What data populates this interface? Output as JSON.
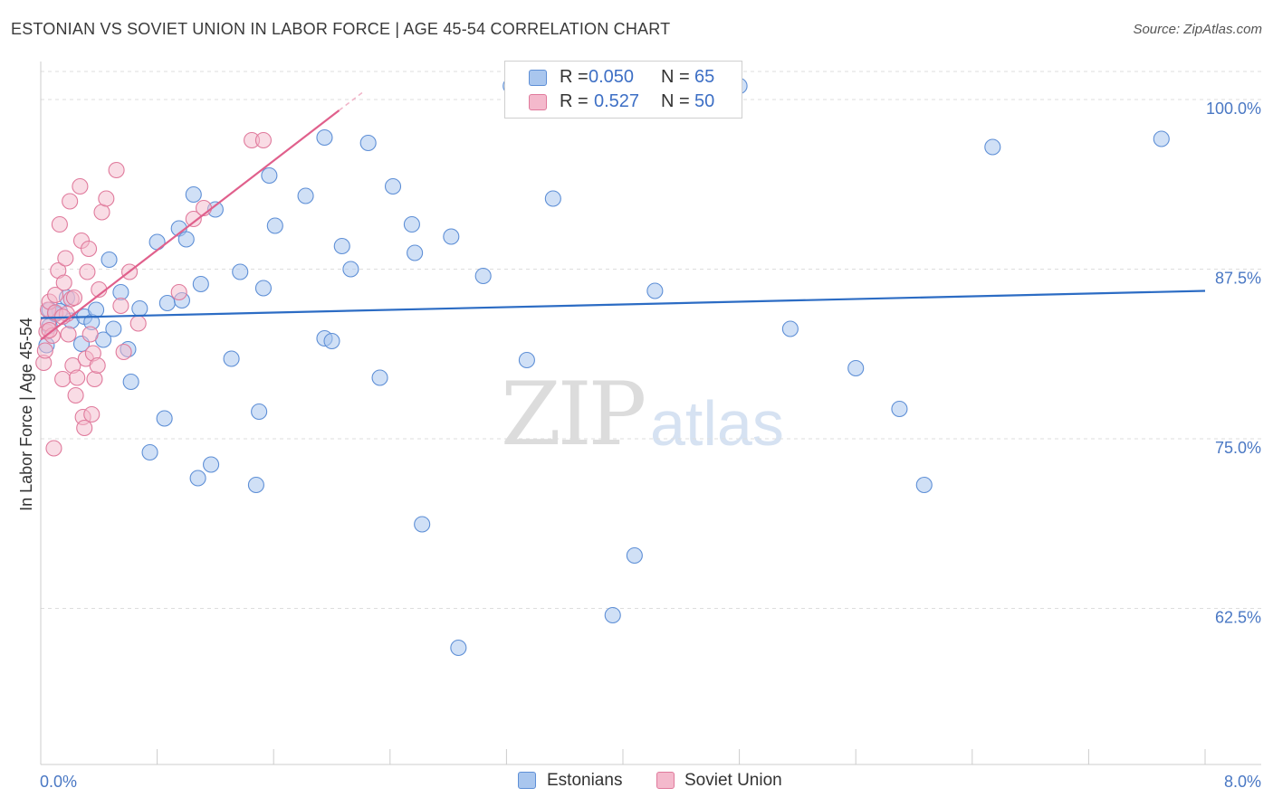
{
  "header": {
    "title": "ESTONIAN VS SOVIET UNION IN LABOR FORCE | AGE 45-54 CORRELATION CHART",
    "source": "Source: ZipAtlas.com"
  },
  "watermark": {
    "part1": "ZIP",
    "part2": "atlas"
  },
  "legend": {
    "estonians": {
      "r_label": "R =",
      "r_value": "0.050",
      "n_label": "N =",
      "n_value": "65"
    },
    "soviet": {
      "r_label": "R =",
      "r_value": "0.527",
      "n_label": "N =",
      "n_value": "50"
    }
  },
  "bottom_legend": {
    "estonians": "Estonians",
    "soviet": "Soviet Union"
  },
  "colors": {
    "estonians_fill": "#a9c6ee",
    "estonians_stroke": "#5e8fd6",
    "estonians_line": "#2c6cc4",
    "soviet_fill": "#f4b9cc",
    "soviet_stroke": "#e07a9c",
    "soviet_line": "#e0608c"
  },
  "chart_data": {
    "type": "scatter",
    "title": "ESTONIAN VS SOVIET UNION IN LABOR FORCE | AGE 45-54 CORRELATION CHART",
    "xlabel": "",
    "ylabel": "In Labor Force | Age 45-54",
    "xlim": [
      0.0,
      8.0
    ],
    "ylim": [
      51.0,
      102.0
    ],
    "x_tick_labels": [
      "0.0%",
      "8.0%"
    ],
    "y_ticks": [
      62.5,
      75.0,
      87.5,
      100.0
    ],
    "y_tick_labels": [
      "62.5%",
      "75.0%",
      "87.5%",
      "100.0%"
    ],
    "series": [
      {
        "name": "Estonians",
        "R": 0.05,
        "N": 65,
        "trend": {
          "x": [
            0.0,
            8.0
          ],
          "y": [
            83.9,
            85.9
          ]
        },
        "points": [
          [
            0.06,
            83.3
          ],
          [
            0.06,
            84.5
          ],
          [
            0.13,
            84.4
          ],
          [
            0.21,
            83.7
          ],
          [
            0.28,
            82.0
          ],
          [
            0.3,
            84.0
          ],
          [
            0.35,
            83.6
          ],
          [
            0.38,
            84.5
          ],
          [
            0.43,
            82.3
          ],
          [
            0.47,
            88.2
          ],
          [
            0.5,
            83.1
          ],
          [
            0.55,
            85.8
          ],
          [
            0.6,
            81.6
          ],
          [
            0.62,
            79.2
          ],
          [
            0.68,
            84.6
          ],
          [
            0.75,
            74.0
          ],
          [
            0.8,
            89.5
          ],
          [
            0.85,
            76.5
          ],
          [
            0.87,
            85.0
          ],
          [
            0.95,
            90.5
          ],
          [
            0.97,
            85.2
          ],
          [
            1.0,
            89.7
          ],
          [
            1.05,
            93.0
          ],
          [
            1.08,
            72.1
          ],
          [
            1.1,
            86.4
          ],
          [
            1.17,
            73.1
          ],
          [
            1.2,
            91.9
          ],
          [
            1.31,
            80.9
          ],
          [
            1.37,
            87.3
          ],
          [
            1.48,
            71.6
          ],
          [
            1.5,
            77.0
          ],
          [
            1.53,
            86.1
          ],
          [
            1.57,
            94.4
          ],
          [
            1.61,
            90.7
          ],
          [
            1.82,
            92.9
          ],
          [
            1.95,
            97.2
          ],
          [
            1.95,
            82.4
          ],
          [
            2.0,
            82.2
          ],
          [
            2.07,
            89.2
          ],
          [
            2.13,
            87.5
          ],
          [
            2.25,
            96.8
          ],
          [
            2.33,
            79.5
          ],
          [
            2.42,
            93.6
          ],
          [
            2.55,
            90.8
          ],
          [
            2.57,
            88.7
          ],
          [
            2.62,
            68.7
          ],
          [
            2.82,
            89.9
          ],
          [
            2.87,
            59.6
          ],
          [
            3.04,
            87.0
          ],
          [
            3.23,
            101.0
          ],
          [
            3.34,
            80.8
          ],
          [
            3.52,
            92.7
          ],
          [
            3.93,
            62.0
          ],
          [
            4.08,
            66.4
          ],
          [
            4.22,
            85.9
          ],
          [
            4.8,
            101.0
          ],
          [
            5.15,
            83.1
          ],
          [
            5.6,
            80.2
          ],
          [
            5.9,
            77.2
          ],
          [
            6.07,
            71.6
          ],
          [
            6.54,
            96.5
          ],
          [
            7.7,
            97.1
          ],
          [
            0.04,
            81.9
          ],
          [
            0.1,
            84.2
          ],
          [
            0.18,
            85.4
          ]
        ]
      },
      {
        "name": "Soviet Union",
        "R": 0.527,
        "N": 50,
        "trend": {
          "x": [
            0.0,
            2.05
          ],
          "y": [
            82.3,
            99.2
          ]
        },
        "trend_dashed": {
          "x": [
            2.05,
            2.22
          ],
          "y": [
            99.2,
            100.6
          ]
        },
        "points": [
          [
            0.02,
            80.6
          ],
          [
            0.03,
            81.5
          ],
          [
            0.04,
            82.9
          ],
          [
            0.05,
            83.5
          ],
          [
            0.05,
            84.5
          ],
          [
            0.06,
            85.1
          ],
          [
            0.08,
            82.6
          ],
          [
            0.09,
            74.3
          ],
          [
            0.1,
            84.3
          ],
          [
            0.1,
            85.6
          ],
          [
            0.12,
            87.4
          ],
          [
            0.13,
            90.8
          ],
          [
            0.15,
            79.4
          ],
          [
            0.16,
            86.5
          ],
          [
            0.17,
            88.3
          ],
          [
            0.18,
            84.2
          ],
          [
            0.19,
            82.7
          ],
          [
            0.2,
            92.5
          ],
          [
            0.21,
            85.3
          ],
          [
            0.22,
            80.4
          ],
          [
            0.23,
            85.4
          ],
          [
            0.24,
            78.2
          ],
          [
            0.25,
            79.5
          ],
          [
            0.27,
            93.6
          ],
          [
            0.28,
            89.6
          ],
          [
            0.29,
            76.6
          ],
          [
            0.3,
            75.8
          ],
          [
            0.31,
            80.9
          ],
          [
            0.32,
            87.3
          ],
          [
            0.33,
            89.0
          ],
          [
            0.34,
            82.7
          ],
          [
            0.35,
            76.8
          ],
          [
            0.36,
            81.3
          ],
          [
            0.37,
            79.4
          ],
          [
            0.39,
            80.4
          ],
          [
            0.4,
            86.0
          ],
          [
            0.42,
            91.7
          ],
          [
            0.45,
            92.7
          ],
          [
            0.52,
            94.8
          ],
          [
            0.55,
            84.8
          ],
          [
            0.57,
            81.4
          ],
          [
            0.61,
            87.3
          ],
          [
            0.67,
            83.5
          ],
          [
            0.95,
            85.8
          ],
          [
            1.05,
            91.2
          ],
          [
            1.12,
            92.0
          ],
          [
            1.45,
            97.0
          ],
          [
            1.53,
            97.0
          ],
          [
            0.06,
            83.0
          ],
          [
            0.15,
            84.0
          ]
        ]
      }
    ]
  },
  "axis": {
    "y_title": "In Labor Force | Age 45-54"
  }
}
